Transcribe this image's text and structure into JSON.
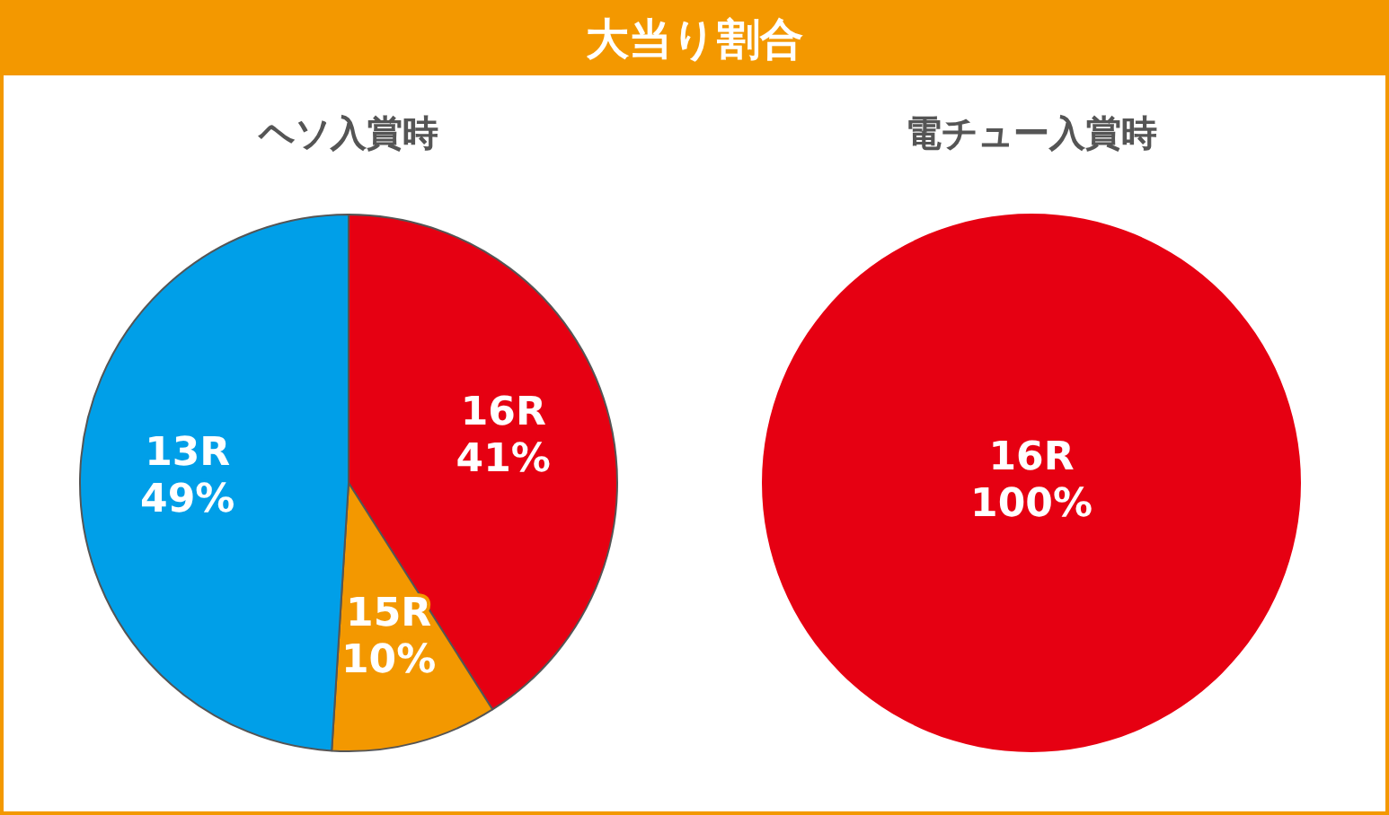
{
  "chart_data": [
    {
      "type": "other",
      "title": "大当り割合"
    },
    {
      "type": "pie",
      "title": "ヘソ入賞時",
      "categories": [
        "16R",
        "15R",
        "13R"
      ],
      "values": [
        41,
        10,
        49
      ],
      "colors": [
        "#e60012",
        "#f39800",
        "#009fe8"
      ],
      "value_labels": [
        "41%",
        "10%",
        "49%"
      ],
      "legend": false
    },
    {
      "type": "pie",
      "title": "電チュー入賞時",
      "categories": [
        "16R"
      ],
      "values": [
        100
      ],
      "colors": [
        "#e60012"
      ],
      "value_labels": [
        "100%"
      ],
      "legend": false
    }
  ]
}
